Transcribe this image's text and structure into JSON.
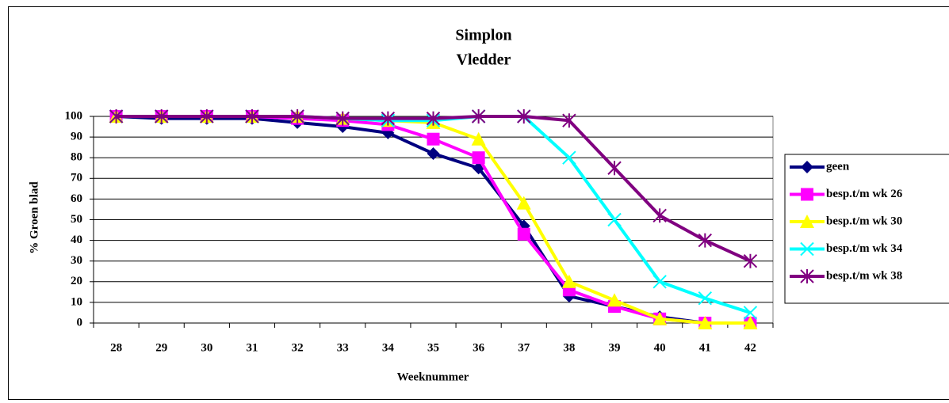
{
  "chart_data": {
    "type": "line",
    "title": "Simplon",
    "subtitle": "Vledder",
    "x_label": "Weeknummer",
    "y_label": "% Groen blad",
    "categories": [
      "28",
      "29",
      "30",
      "31",
      "32",
      "33",
      "34",
      "35",
      "36",
      "37",
      "38",
      "39",
      "40",
      "41",
      "42"
    ],
    "ylim": [
      0,
      100
    ],
    "yticks": [
      0,
      10,
      20,
      30,
      40,
      50,
      60,
      70,
      80,
      90,
      100
    ],
    "grid": true,
    "legend": "right",
    "series": [
      {
        "name": "geen",
        "color": "#000080",
        "marker": "diamond",
        "values": [
          100,
          99,
          99,
          99,
          97,
          95,
          92,
          82,
          75,
          47,
          13,
          8,
          3,
          0,
          0
        ]
      },
      {
        "name": "besp.t/m wk 26",
        "color": "#ff00ff",
        "marker": "square",
        "values": [
          100,
          100,
          100,
          100,
          99,
          98,
          96,
          89,
          80,
          43,
          16,
          8,
          2,
          0,
          0
        ]
      },
      {
        "name": "besp.t/m wk 30",
        "color": "#ffff00",
        "marker": "triangle",
        "values": [
          100,
          100,
          100,
          100,
          100,
          99,
          98,
          97,
          89,
          58,
          20,
          11,
          2,
          0,
          0
        ]
      },
      {
        "name": "besp.t/m wk 34",
        "color": "#00ffff",
        "marker": "x",
        "values": [
          100,
          100,
          100,
          100,
          100,
          99,
          98,
          98,
          100,
          100,
          80,
          50,
          20,
          12,
          5
        ]
      },
      {
        "name": "besp.t/m wk 38",
        "color": "#800080",
        "marker": "star",
        "values": [
          100,
          100,
          100,
          100,
          100,
          99,
          99,
          99,
          100,
          100,
          98,
          75,
          52,
          40,
          30
        ]
      }
    ]
  }
}
